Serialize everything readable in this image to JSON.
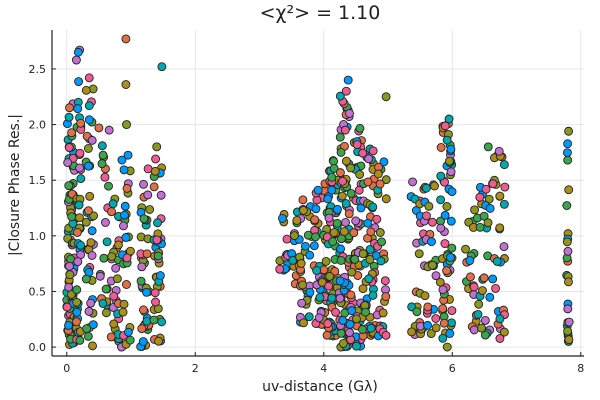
{
  "chart_data": {
    "type": "scatter",
    "title": "<χ²> = 1.10",
    "xlabel": "uv-distance (Gλ)",
    "ylabel": "|Closure Phase Res.|",
    "xlim": [
      -0.23,
      8.05
    ],
    "ylim": [
      -0.08,
      2.85
    ],
    "xticks": [
      0,
      2,
      4,
      6,
      8
    ],
    "yticks": [
      0.0,
      0.5,
      1.0,
      1.5,
      2.0,
      2.5
    ],
    "xtick_labels": [
      "0",
      "2",
      "4",
      "6",
      "8"
    ],
    "ytick_labels": [
      "0.0",
      "0.5",
      "1.0",
      "1.5",
      "2.0",
      "2.5"
    ],
    "grid": true,
    "legend": "none",
    "marker_edge_color": "#222222",
    "series_colors": [
      "#009AFA",
      "#E26F46",
      "#3DA44D",
      "#C271D2",
      "#AC8E18",
      "#00A9AD",
      "#ED5D92",
      "#8E971D"
    ],
    "clusters": [
      {
        "x": [
          0.0,
          0.12
        ],
        "y": [
          0.02,
          2.2
        ],
        "n": 95
      },
      {
        "x": [
          0.15,
          0.22
        ],
        "y": [
          0.05,
          2.68
        ],
        "n": 40
      },
      {
        "x": [
          0.3,
          0.42
        ],
        "y": [
          0.0,
          2.44
        ],
        "n": 40
      },
      {
        "x": [
          0.52,
          0.65
        ],
        "y": [
          0.3,
          1.95
        ],
        "n": 20
      },
      {
        "x": [
          0.68,
          0.82
        ],
        "y": [
          0.05,
          1.35
        ],
        "n": 30
      },
      {
        "x": [
          0.85,
          1.0
        ],
        "y": [
          0.0,
          2.0
        ],
        "n": 30
      },
      {
        "x": [
          1.15,
          1.3
        ],
        "y": [
          0.0,
          1.7
        ],
        "n": 40
      },
      {
        "x": [
          1.35,
          1.48
        ],
        "y": [
          0.05,
          1.7
        ],
        "n": 40
      },
      {
        "x": [
          3.3,
          3.45
        ],
        "y": [
          0.6,
          1.28
        ],
        "n": 15
      },
      {
        "x": [
          3.5,
          3.65
        ],
        "y": [
          0.55,
          1.25
        ],
        "n": 15
      },
      {
        "x": [
          3.62,
          3.82
        ],
        "y": [
          0.2,
          1.38
        ],
        "n": 30
      },
      {
        "x": [
          3.85,
          4.05
        ],
        "y": [
          0.2,
          1.5
        ],
        "n": 50
      },
      {
        "x": [
          4.05,
          4.25
        ],
        "y": [
          0.1,
          1.7
        ],
        "n": 70
      },
      {
        "x": [
          4.25,
          4.4
        ],
        "y": [
          0.0,
          2.3
        ],
        "n": 80
      },
      {
        "x": [
          4.4,
          4.6
        ],
        "y": [
          0.0,
          2.0
        ],
        "n": 60
      },
      {
        "x": [
          4.6,
          4.82
        ],
        "y": [
          0.1,
          1.8
        ],
        "n": 60
      },
      {
        "x": [
          4.82,
          4.98
        ],
        "y": [
          0.1,
          1.7
        ],
        "n": 30
      },
      {
        "x": [
          5.35,
          5.55
        ],
        "y": [
          0.1,
          1.55
        ],
        "n": 25
      },
      {
        "x": [
          5.55,
          5.75
        ],
        "y": [
          0.1,
          1.5
        ],
        "n": 30
      },
      {
        "x": [
          5.8,
          6.0
        ],
        "y": [
          0.0,
          2.05
        ],
        "n": 60
      },
      {
        "x": [
          6.2,
          6.4
        ],
        "y": [
          0.15,
          1.3
        ],
        "n": 20
      },
      {
        "x": [
          6.4,
          6.6
        ],
        "y": [
          0.1,
          1.5
        ],
        "n": 25
      },
      {
        "x": [
          6.6,
          6.82
        ],
        "y": [
          0.05,
          1.78
        ],
        "n": 30
      },
      {
        "x": [
          7.78,
          7.82
        ],
        "y": [
          0.05,
          1.94
        ],
        "n": 25
      }
    ],
    "points": [
      {
        "x": 0.92,
        "y": 2.77
      },
      {
        "x": 0.2,
        "y": 2.67
      },
      {
        "x": 0.18,
        "y": 2.65
      },
      {
        "x": 0.15,
        "y": 2.58
      },
      {
        "x": 1.48,
        "y": 2.52
      },
      {
        "x": 0.35,
        "y": 2.42
      },
      {
        "x": 4.38,
        "y": 2.4
      },
      {
        "x": 0.92,
        "y": 2.36
      },
      {
        "x": 4.35,
        "y": 2.3
      },
      {
        "x": 4.97,
        "y": 2.25
      },
      {
        "x": 0.35,
        "y": 2.17
      },
      {
        "x": 4.4,
        "y": 2.1
      },
      {
        "x": 5.95,
        "y": 2.05
      },
      {
        "x": 0.93,
        "y": 2.0
      },
      {
        "x": 0.5,
        "y": 1.97
      },
      {
        "x": 0.66,
        "y": 1.95
      },
      {
        "x": 7.81,
        "y": 1.94
      },
      {
        "x": 5.92,
        "y": 1.86
      },
      {
        "x": 4.52,
        "y": 1.82
      },
      {
        "x": 1.4,
        "y": 1.8
      },
      {
        "x": 6.56,
        "y": 1.8
      },
      {
        "x": 6.73,
        "y": 1.76
      }
    ]
  }
}
